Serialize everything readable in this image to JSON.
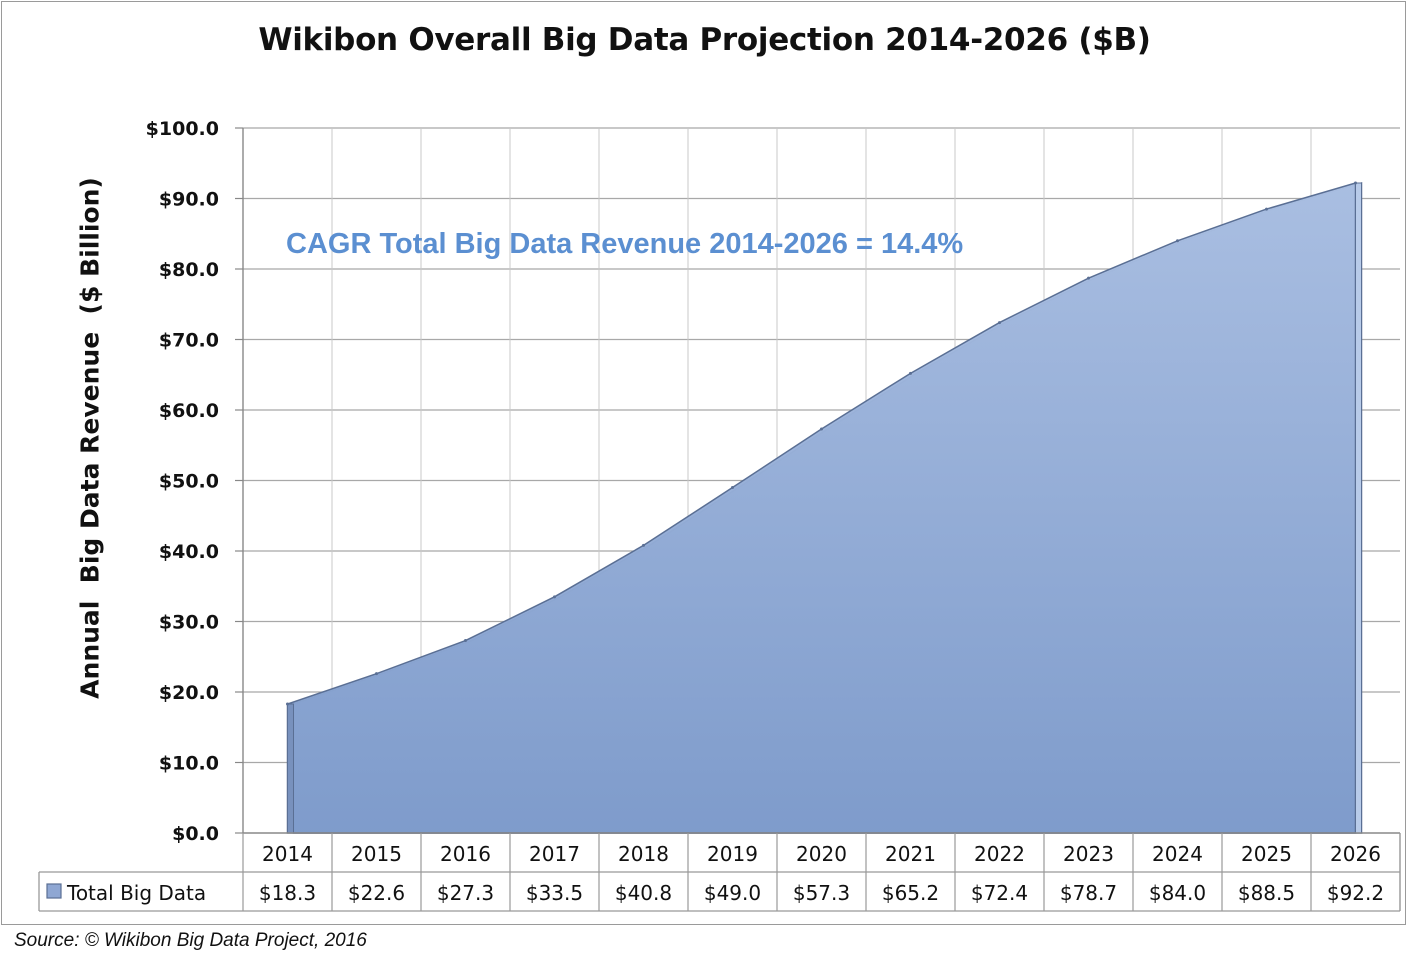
{
  "chart_data": {
    "type": "area",
    "title": "Wikibon Overall Big Data Projection 2014-2026 ($B)",
    "ylabel": "Annual  Big Data Revenue  ($ Billion)",
    "xlabel": "",
    "categories": [
      "2014",
      "2015",
      "2016",
      "2017",
      "2018",
      "2019",
      "2020",
      "2021",
      "2022",
      "2023",
      "2024",
      "2025",
      "2026"
    ],
    "series": [
      {
        "name": "Total Big Data",
        "values": [
          18.3,
          22.6,
          27.3,
          33.5,
          40.8,
          49.0,
          57.3,
          65.2,
          72.4,
          78.7,
          84.0,
          88.5,
          92.2
        ],
        "value_labels": [
          "$18.3",
          "$22.6",
          "$27.3",
          "$33.5",
          "$40.8",
          "$49.0",
          "$57.3",
          "$65.2",
          "$72.4",
          "$78.7",
          "$84.0",
          "$88.5",
          "$92.2"
        ]
      }
    ],
    "ylim": [
      0,
      100
    ],
    "yticks": [
      0,
      10,
      20,
      30,
      40,
      50,
      60,
      70,
      80,
      90,
      100
    ],
    "ytick_labels": [
      "$0.0",
      "$10.0",
      "$20.0",
      "$30.0",
      "$40.0",
      "$50.0",
      "$60.0",
      "$70.0",
      "$80.0",
      "$90.0",
      "$100.0"
    ],
    "grid": true,
    "legend": "data-table-left",
    "annotation": "CAGR Total Big Data Revenue 2014-2026 = 14.4%",
    "colors": {
      "area_top": "#a9bde0",
      "area_bottom": "#7f9dcc",
      "edge": "#5a6f94",
      "annotation": "#5b8fd1"
    }
  },
  "source": "Source: © Wikibon Big Data Project, 2016"
}
